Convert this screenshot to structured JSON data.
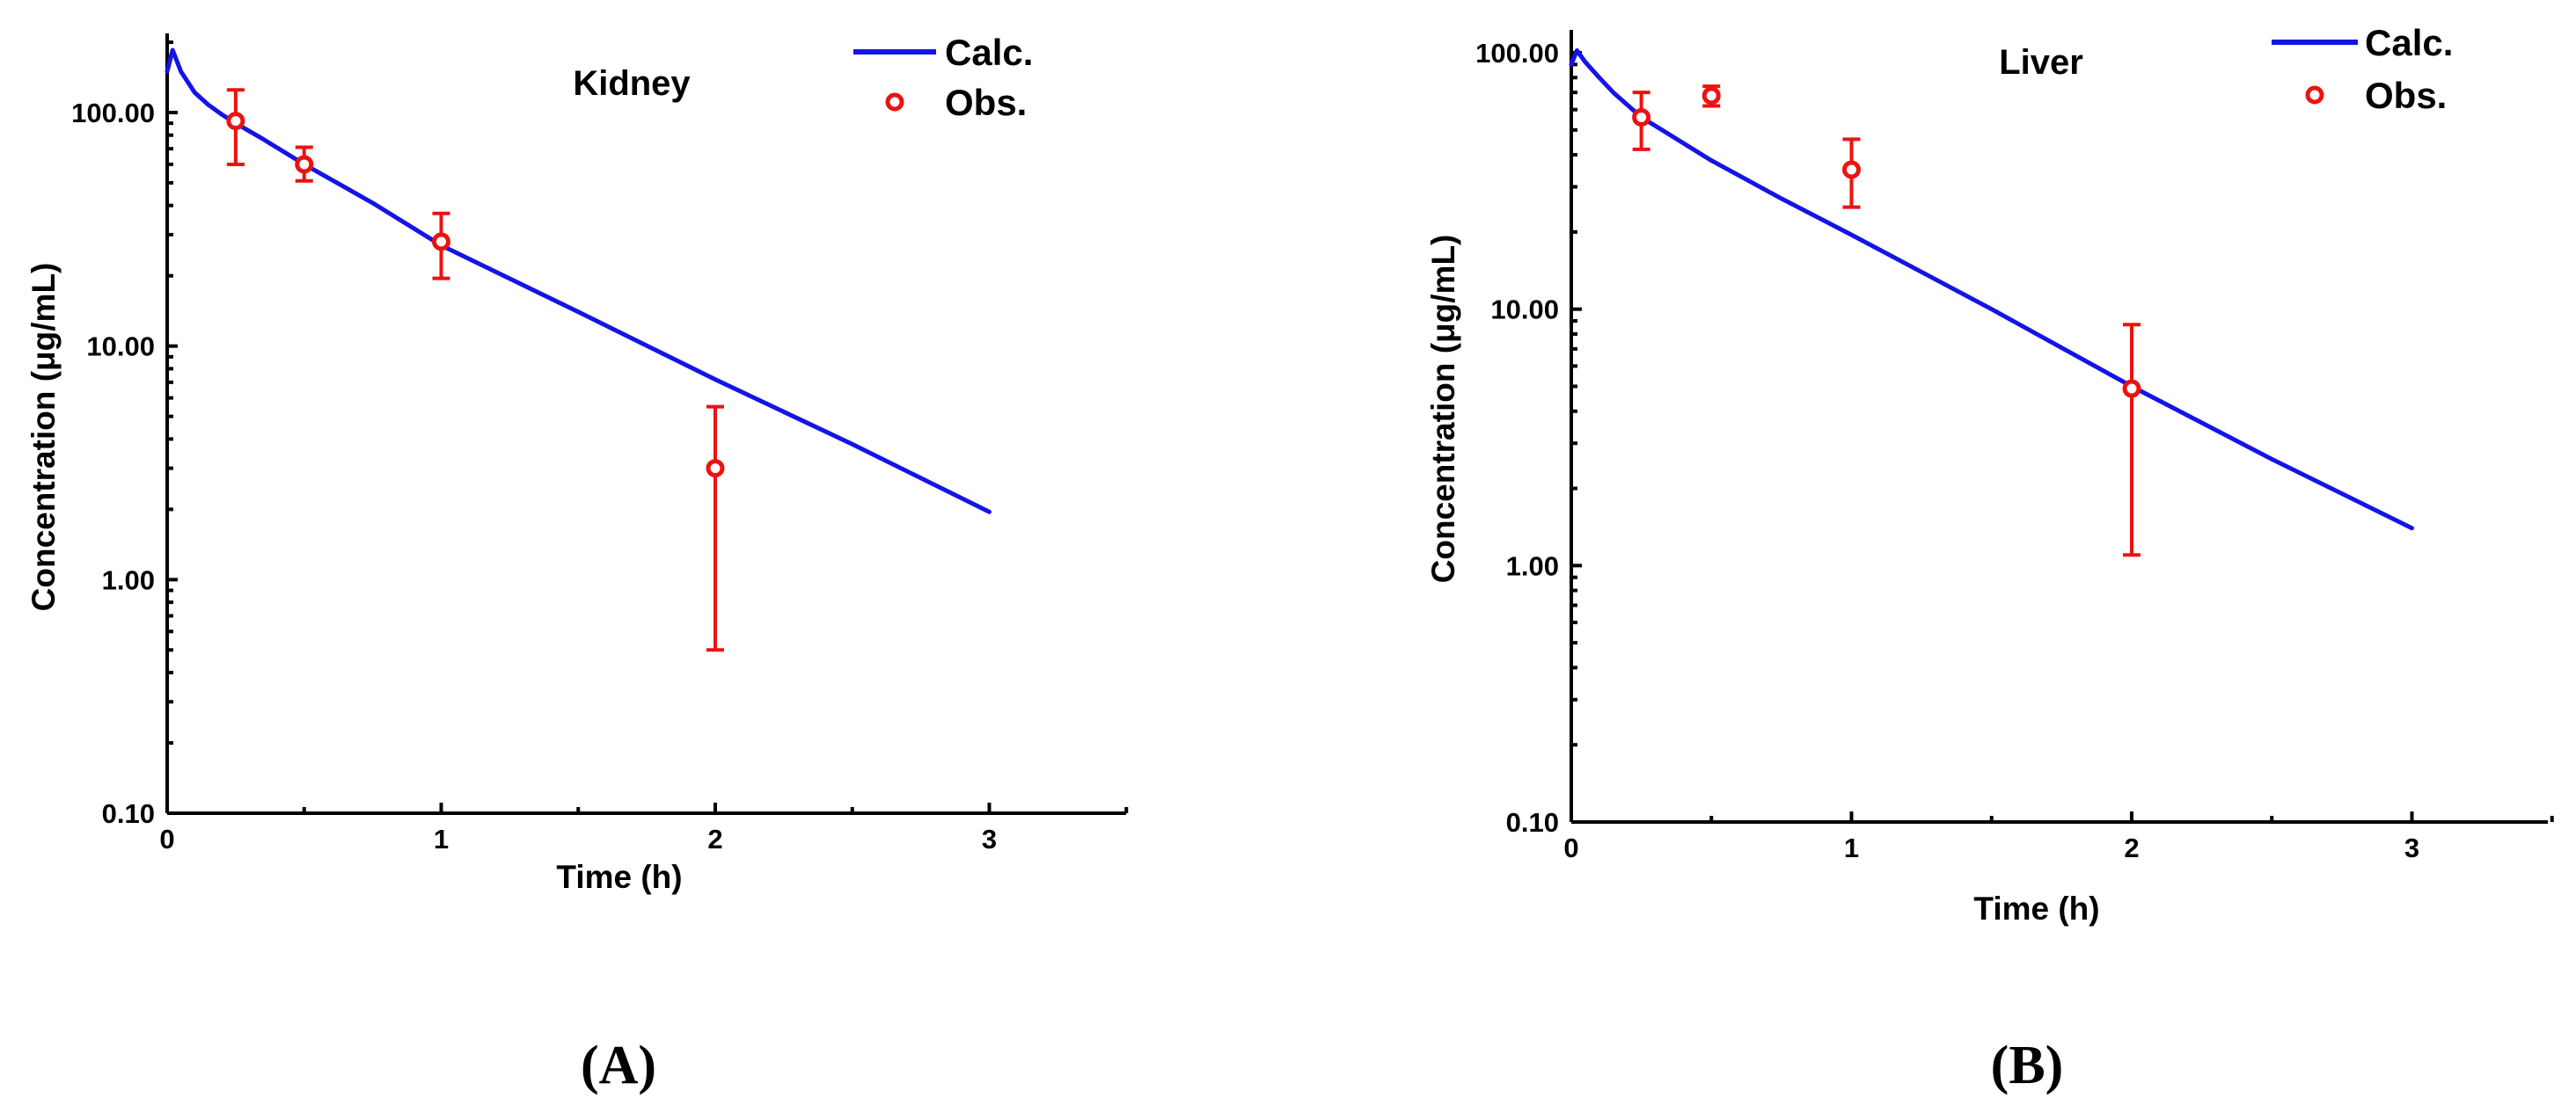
{
  "chart_data": [
    {
      "type": "line",
      "panel": "(A)",
      "title": "Kidney",
      "xlabel": "Time (h)",
      "ylabel": "Concentration (μg/mL)",
      "xlim": [
        0,
        3.5
      ],
      "ylim": [
        0.1,
        200
      ],
      "yscale": "log",
      "xticks": [
        0,
        1,
        2,
        3
      ],
      "xtick_labels": [
        "0",
        "1",
        "2",
        "3"
      ],
      "yticks": [
        0.1,
        1,
        10,
        100
      ],
      "ytick_labels": [
        "0.10",
        "1.00",
        "10.00",
        "100.00"
      ],
      "legend": [
        "Calc.",
        "Obs."
      ],
      "legend_position": "top-right",
      "series": [
        {
          "name": "Calc.",
          "kind": "line",
          "color": "#1414e6",
          "x": [
            0,
            0.02,
            0.05,
            0.1,
            0.15,
            0.2,
            0.25,
            0.35,
            0.5,
            0.75,
            1.0,
            1.5,
            2.0,
            2.5,
            3.0
          ],
          "y": [
            150,
            185,
            150,
            122,
            108,
            98,
            90,
            77,
            60,
            41,
            27,
            14,
            7.2,
            3.8,
            1.95
          ]
        },
        {
          "name": "Obs.",
          "kind": "scatter",
          "color": "#ee1111",
          "x": [
            0.25,
            0.5,
            1.0,
            2.0
          ],
          "y": [
            92,
            60,
            28,
            3
          ],
          "err_low": [
            60,
            51,
            19.5,
            0.5
          ],
          "err_high": [
            125,
            71,
            37,
            5.5
          ]
        }
      ]
    },
    {
      "type": "line",
      "panel": "(B)",
      "title": "Liver",
      "xlabel": "Time (h)",
      "ylabel": "Concentration (μg/mL)",
      "xlim": [
        0,
        3.5
      ],
      "ylim": [
        0.1,
        120
      ],
      "yscale": "log",
      "xticks": [
        0,
        1,
        2,
        3
      ],
      "xtick_labels": [
        "0",
        "1",
        "2",
        "3"
      ],
      "yticks": [
        0.1,
        1,
        10,
        100
      ],
      "ytick_labels": [
        "0.10",
        "1.00",
        "10.00",
        "100.00"
      ],
      "legend": [
        "Calc.",
        "Obs."
      ],
      "legend_position": "top-right",
      "series": [
        {
          "name": "Calc.",
          "kind": "line",
          "color": "#1414e6",
          "x": [
            0,
            0.02,
            0.05,
            0.1,
            0.15,
            0.25,
            0.35,
            0.5,
            0.75,
            1.0,
            1.5,
            2.0,
            2.5,
            3.0
          ],
          "y": [
            90,
            102,
            92,
            80,
            70,
            56,
            48,
            38,
            27,
            19.5,
            10,
            5,
            2.6,
            1.4
          ]
        },
        {
          "name": "Obs.",
          "kind": "scatter",
          "color": "#ee1111",
          "x": [
            0.25,
            0.5,
            1.0,
            2.0
          ],
          "y": [
            56,
            68,
            35,
            4.9
          ],
          "err_low": [
            42,
            62,
            25,
            1.1
          ],
          "err_high": [
            70,
            74,
            46,
            8.7
          ]
        }
      ]
    }
  ]
}
